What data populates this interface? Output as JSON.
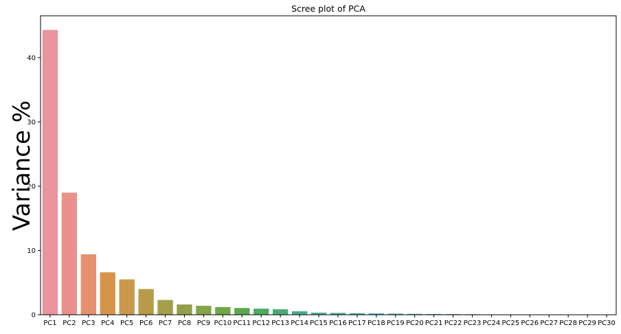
{
  "chart_data": {
    "type": "bar",
    "title": "Scree plot of PCA",
    "xlabel": "",
    "ylabel": "Variance %",
    "ylim": [
      0,
      46.5
    ],
    "yticks": [
      0,
      10,
      20,
      30,
      40
    ],
    "grid": false,
    "categories": [
      "PC1",
      "PC2",
      "PC3",
      "PC4",
      "PC5",
      "PC6",
      "PC7",
      "PC8",
      "PC9",
      "PC10",
      "PC11",
      "PC12",
      "PC13",
      "PC14",
      "PC15",
      "PC16",
      "PC17",
      "PC18",
      "PC19",
      "PC20",
      "PC21",
      "PC22",
      "PC23",
      "PC24",
      "PC25",
      "PC26",
      "PC27",
      "PC28",
      "PC29",
      "PC30"
    ],
    "values": [
      44.3,
      19.0,
      9.4,
      6.6,
      5.5,
      4.0,
      2.3,
      1.6,
      1.4,
      1.2,
      1.05,
      0.95,
      0.85,
      0.55,
      0.33,
      0.29,
      0.24,
      0.21,
      0.18,
      0.14,
      0.12,
      0.1,
      0.08,
      0.06,
      0.05,
      0.02,
      0.01,
      0.008,
      0.005,
      0.003
    ],
    "colors": [
      "#e9949f",
      "#e8918a",
      "#e5906e",
      "#d8934b",
      "#c9984a",
      "#b89b4a",
      "#a59e4a",
      "#949f4a",
      "#84a44a",
      "#6fa74b",
      "#5aa94e",
      "#4dab5f",
      "#4bab78",
      "#4aab89",
      "#4aab97",
      "#4aaaa3",
      "#4aa9ad",
      "#4aa8b6",
      "#4ba6bd",
      "#50a3c4",
      "#5aa0cc",
      "#6e9ad6",
      "#8a93dd",
      "#a38ae0",
      "#b785e0",
      "#c780df",
      "#d57ddb",
      "#df7dd1",
      "#e77fc4",
      "#e983b5"
    ]
  }
}
